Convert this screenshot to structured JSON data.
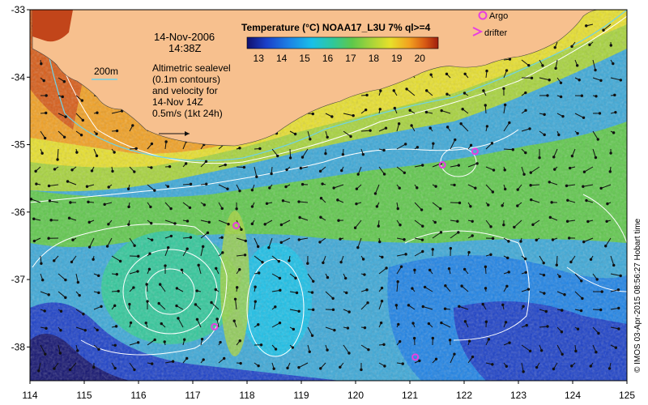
{
  "map": {
    "date": "14-Nov-2006",
    "time": "14:38Z",
    "colorbar_title": "Temperature (°C) NOAA17_L3U 7% ql>=4",
    "colorbar_ticks": [
      "13",
      "14",
      "15",
      "16",
      "17",
      "18",
      "19",
      "20"
    ],
    "colorbar_range": [
      12.5,
      20.8
    ],
    "isobath_label": "200m",
    "description_lines": [
      "Altimetric sealevel",
      "(0.1m contours)",
      "and velocity for",
      "14-Nov 14Z",
      "0.5m/s (1kt 24h)"
    ],
    "legend": {
      "argo": "Argo",
      "drifter": "drifter"
    },
    "credit": "© IMOS 03-Apr-2015 08:56:27 Hobart time",
    "x_ticks": [
      "114",
      "115",
      "116",
      "117",
      "118",
      "119",
      "120",
      "121",
      "122",
      "123",
      "124",
      "125"
    ],
    "y_ticks": [
      "-33",
      "-34",
      "-35",
      "-36",
      "-37",
      "-38"
    ],
    "lon_range": [
      114,
      125
    ],
    "lat_range": [
      -38.5,
      -33
    ],
    "argo_floats": [
      {
        "lon": 121.6,
        "lat": -35.3
      },
      {
        "lon": 122.2,
        "lat": -35.1
      },
      {
        "lon": 117.8,
        "lat": -36.2
      },
      {
        "lon": 117.4,
        "lat": -37.7
      },
      {
        "lon": 121.1,
        "lat": -38.15
      }
    ],
    "colors": {
      "land": "#f7c08e",
      "argo": "#e83fe0",
      "drifter": "#e83fe0",
      "isobath": "#6fd3e8",
      "contour": "#ffffff",
      "colormap": [
        "#10106e",
        "#1a3fc8",
        "#1c82e6",
        "#19c0e8",
        "#2fc89a",
        "#5ec84a",
        "#a7d43a",
        "#e8e02a",
        "#f2a020",
        "#d85a14",
        "#a01e0e"
      ]
    }
  }
}
